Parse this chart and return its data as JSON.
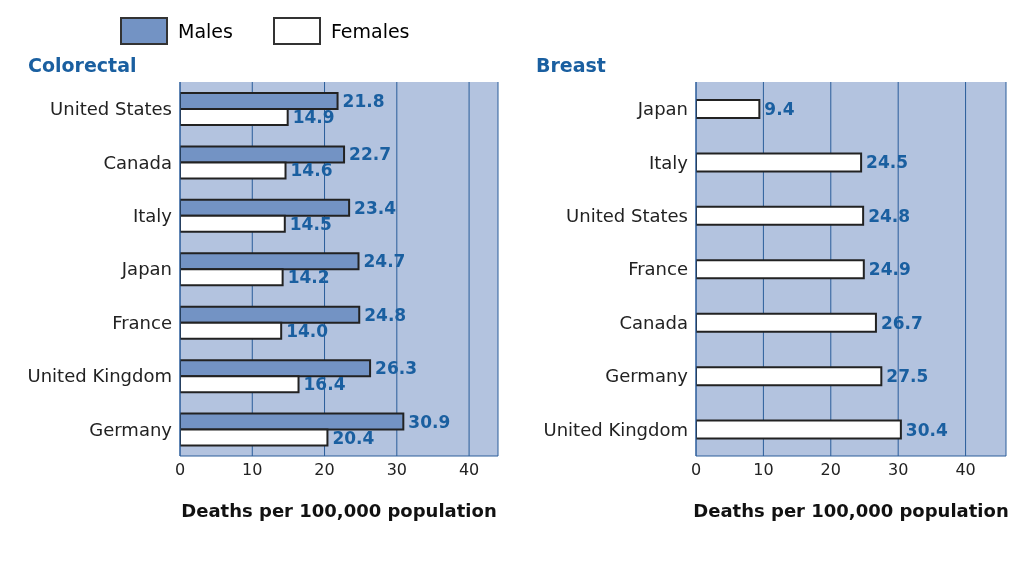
{
  "chart_data": [
    {
      "type": "bar",
      "orientation": "horizontal",
      "title": "Colorectal",
      "xlabel": "Deaths per 100,000 population",
      "categories": [
        "United States",
        "Canada",
        "Italy",
        "Japan",
        "France",
        "United Kingdom",
        "Germany"
      ],
      "series": [
        {
          "name": "Males",
          "color": "#7393c4",
          "values": [
            21.8,
            22.7,
            23.4,
            24.7,
            24.8,
            26.3,
            30.9
          ],
          "value_labels": [
            "21.8",
            "22.7",
            "23.4",
            "24.7",
            "24.8",
            "26.3",
            "30.9"
          ]
        },
        {
          "name": "Females",
          "color": "#ffffff",
          "values": [
            14.9,
            14.6,
            14.5,
            14.2,
            14.0,
            16.4,
            20.4
          ],
          "value_labels": [
            "14.9",
            "14.6",
            "14.5",
            "14.2",
            "14.0",
            "16.4",
            "20.4"
          ]
        }
      ],
      "xlim": [
        0,
        44
      ],
      "xticks": [
        0,
        10,
        20,
        30,
        40
      ],
      "grid": "x",
      "legend": "top"
    },
    {
      "type": "bar",
      "orientation": "horizontal",
      "title": "Breast",
      "xlabel": "Deaths per 100,000 population",
      "categories": [
        "Japan",
        "Italy",
        "United States",
        "France",
        "Canada",
        "Germany",
        "United Kingdom"
      ],
      "series": [
        {
          "color": "#ffffff",
          "values": [
            9.4,
            24.5,
            24.8,
            24.9,
            26.7,
            27.5,
            30.4
          ],
          "value_labels": [
            "9.4",
            "24.5",
            "24.8",
            "24.9",
            "26.7",
            "27.5",
            "30.4"
          ]
        }
      ],
      "xlim": [
        0,
        46
      ],
      "xticks": [
        0,
        10,
        20,
        30,
        40
      ],
      "grid": "x"
    }
  ]
}
